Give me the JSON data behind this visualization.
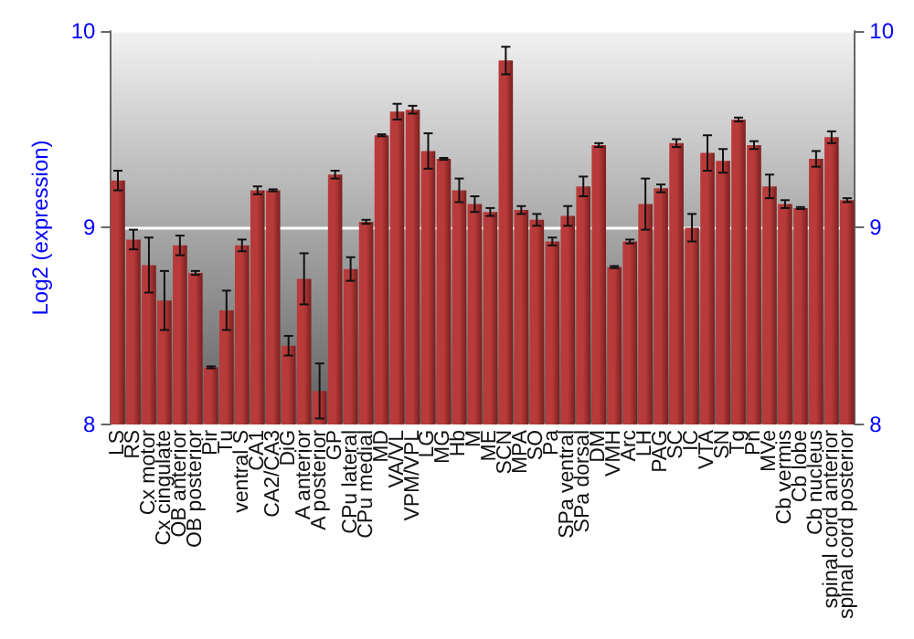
{
  "chart_data": {
    "type": "bar",
    "ylabel": "Log2 (expression)",
    "categories": [
      "LS",
      "RS",
      "Cx motor",
      "Cx cingulate",
      "OB anterior",
      "OB posterior",
      "Pir",
      "Tu",
      "ventral S",
      "CA1",
      "CA2/CA3",
      "DiG",
      "A anterior",
      "A posterior",
      "GP",
      "CPu lateral",
      "CPu medial",
      "MD",
      "VA/VL",
      "VPM/VPL",
      "LG",
      "MG",
      "Hb",
      "M",
      "ME",
      "SCN",
      "MPA",
      "SO",
      "Pa",
      "SPa ventral",
      "SPa dorsal",
      "DM",
      "VMH",
      "Arc",
      "LH",
      "PAG",
      "SC",
      "IC",
      "VTA",
      "SN",
      "Tg",
      "Pn",
      "MVe",
      "Cb vermis",
      "Cb lobe",
      "Cb nucleus",
      "spinal cord anterior",
      "spinal cord posterior"
    ],
    "values": [
      9.24,
      8.94,
      8.81,
      8.63,
      8.91,
      8.77,
      8.29,
      8.58,
      8.91,
      9.19,
      9.19,
      8.4,
      8.74,
      8.17,
      9.27,
      8.79,
      9.03,
      9.47,
      9.59,
      9.6,
      9.39,
      9.35,
      9.19,
      9.12,
      9.08,
      9.85,
      9.09,
      9.04,
      8.93,
      9.06,
      9.21,
      9.42,
      8.8,
      8.93,
      9.12,
      9.2,
      9.43,
      9.0,
      9.38,
      9.34,
      9.55,
      9.42,
      9.21,
      9.12,
      9.1,
      9.35,
      9.46,
      9.14
    ],
    "errors": [
      0.05,
      0.05,
      0.14,
      0.15,
      0.05,
      0.01,
      0.005,
      0.1,
      0.03,
      0.02,
      0.005,
      0.05,
      0.13,
      0.14,
      0.02,
      0.06,
      0.01,
      0.005,
      0.04,
      0.02,
      0.09,
      0.005,
      0.06,
      0.04,
      0.02,
      0.07,
      0.02,
      0.03,
      0.02,
      0.05,
      0.05,
      0.01,
      0.005,
      0.01,
      0.13,
      0.02,
      0.02,
      0.07,
      0.09,
      0.06,
      0.01,
      0.02,
      0.06,
      0.02,
      0.005,
      0.04,
      0.03,
      0.01
    ],
    "color": "#b83a3a",
    "ylim": [
      8,
      10
    ],
    "yticks": [
      8,
      9,
      10
    ],
    "y2lim": [
      8,
      10
    ],
    "y2ticks": [
      8,
      9,
      10
    ],
    "grid": "y"
  }
}
